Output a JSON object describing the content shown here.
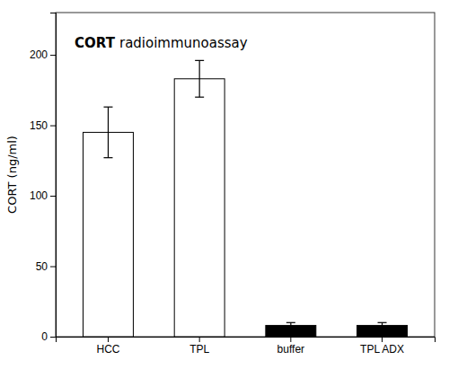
{
  "chart_data": {
    "type": "bar",
    "title": "CORT",
    "subtitle": "radioimmunoassay",
    "ylabel": "CORT (ng/ml)",
    "categories": [
      "HCC",
      "TPL",
      "buffer",
      "TPL ADX"
    ],
    "values": [
      145,
      183,
      8,
      8
    ],
    "errors": [
      18,
      13,
      2,
      2
    ],
    "colors": [
      "white",
      "white",
      "black",
      "black"
    ],
    "ylim": [
      0,
      230
    ],
    "yticks": [
      0,
      50,
      100,
      150,
      200
    ],
    "grid": false
  }
}
